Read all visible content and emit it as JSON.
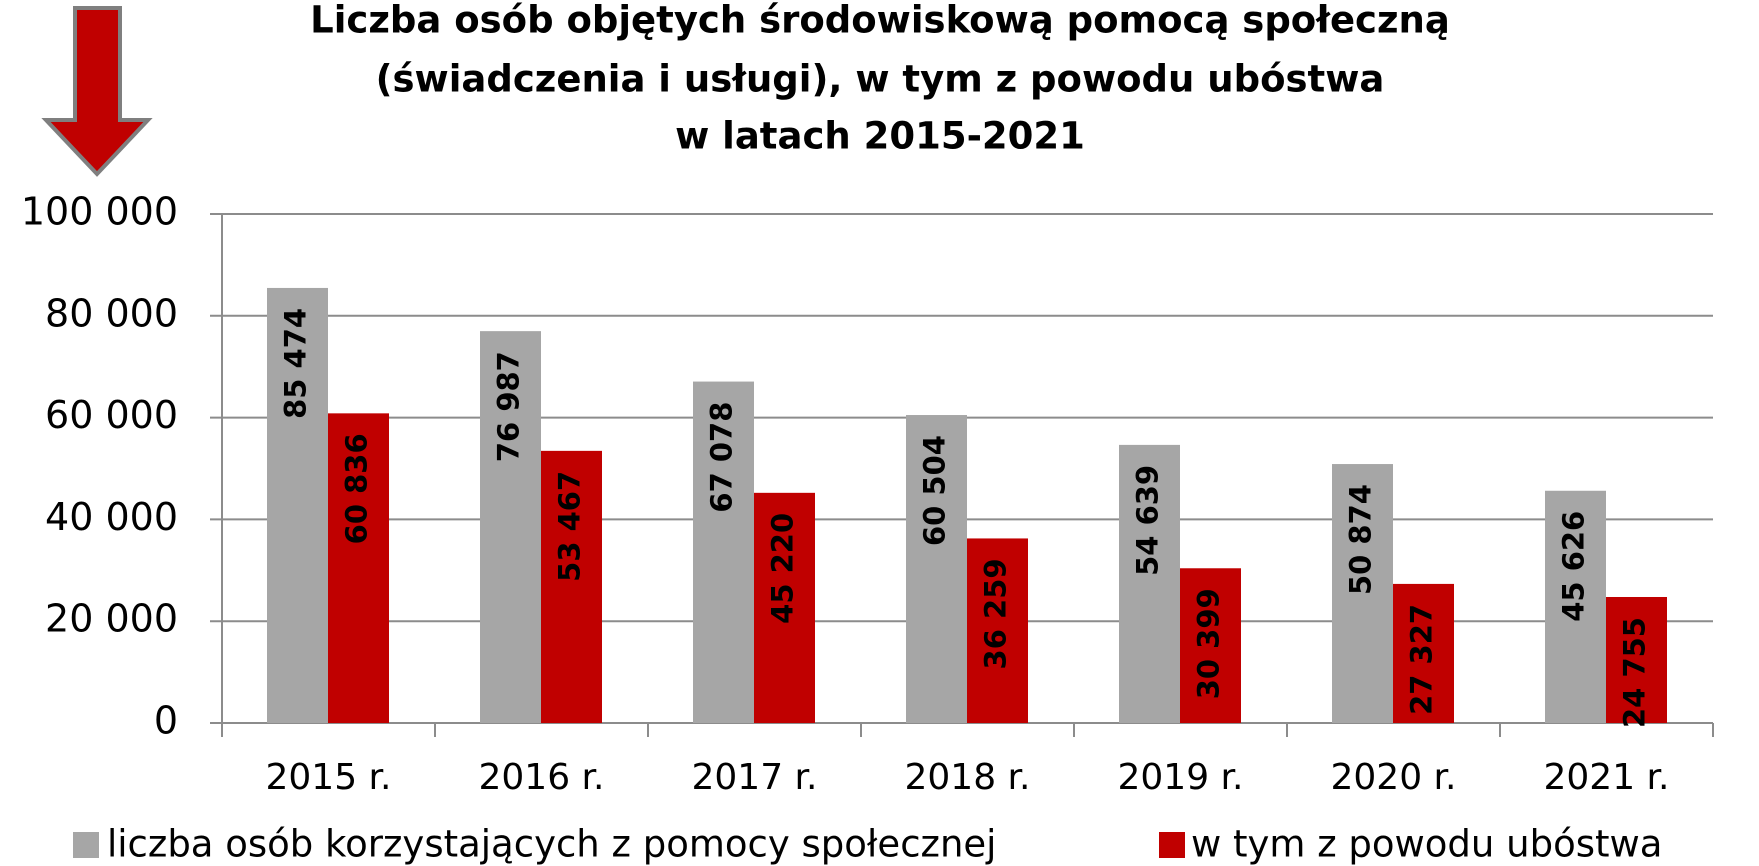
{
  "chart_data": {
    "type": "bar",
    "title": [
      "Liczba osób objętych środowiskową pomocą społeczną",
      "(świadczenia i usługi), w tym z powodu ubóstwa",
      "w latach 2015-2021"
    ],
    "categories": [
      "2015 r.",
      "2016 r.",
      "2017 r.",
      "2018 r.",
      "2019 r.",
      "2020 r.",
      "2021 r."
    ],
    "series": [
      {
        "name": "liczba osób korzystających z pomocy społecznej",
        "color": "#a6a6a6",
        "values": [
          85474,
          76987,
          67078,
          60504,
          54639,
          50874,
          45626
        ],
        "value_labels": [
          "85 474",
          "76 987",
          "67 078",
          "60 504",
          "54 639",
          "50 874",
          "45 626"
        ]
      },
      {
        "name": "w tym z powodu ubóstwa",
        "color": "#c00000",
        "values": [
          60836,
          53467,
          45220,
          36259,
          30399,
          27327,
          24755
        ],
        "value_labels": [
          "60 836",
          "53 467",
          "45 220",
          "36 259",
          "30 399",
          "27 327",
          "24 755"
        ]
      }
    ],
    "ylim": [
      0,
      100000
    ],
    "yticks": [
      0,
      {
        "value": 20000,
        "label": "20 000"
      },
      {
        "value": 40000,
        "label": "40 000"
      },
      {
        "value": 60000,
        "label": "60 000"
      },
      {
        "value": 80000,
        "label": "80 000"
      },
      {
        "value": 100000,
        "label": "100 000"
      }
    ],
    "grid": true
  }
}
